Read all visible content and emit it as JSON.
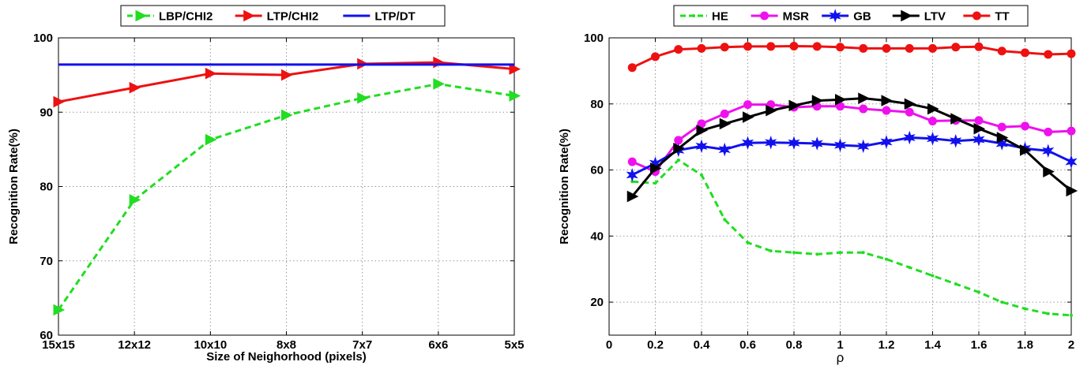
{
  "chart_data": [
    {
      "type": "line",
      "xlabel": "Size of Neighorhood (pixels)",
      "ylabel": "Recognition Rate(%)",
      "categories": [
        "15x15",
        "12x12",
        "10x10",
        "8x8",
        "7x7",
        "6x6",
        "5x5"
      ],
      "ylim": [
        60,
        100
      ],
      "yticks": [
        60,
        70,
        80,
        90,
        100
      ],
      "grid": true,
      "legend_position": "top",
      "series": [
        {
          "name": "LBP/CHI2",
          "color": "#22dd22",
          "dash": "dashed",
          "marker": "triangle-right",
          "values": [
            63.4,
            78.2,
            86.3,
            89.6,
            91.9,
            93.8,
            92.2
          ]
        },
        {
          "name": "LTP/CHI2",
          "color": "#ee1111",
          "dash": "solid",
          "marker": "triangle-right",
          "values": [
            91.4,
            93.3,
            95.2,
            95.0,
            96.5,
            96.7,
            95.8
          ]
        },
        {
          "name": "LTP/DT",
          "color": "#1111ee",
          "dash": "solid",
          "marker": "none",
          "values": [
            96.4,
            96.4,
            96.4,
            96.4,
            96.4,
            96.4,
            96.4
          ]
        }
      ]
    },
    {
      "type": "line",
      "xlabel": "ρ",
      "ylabel": "Recognition Rate(%)",
      "x": [
        0.1,
        0.2,
        0.3,
        0.4,
        0.5,
        0.6,
        0.7,
        0.8,
        0.9,
        1.0,
        1.1,
        1.2,
        1.3,
        1.4,
        1.5,
        1.6,
        1.7,
        1.8,
        1.9,
        2.0
      ],
      "xlim": [
        0,
        2
      ],
      "xticks": [
        0,
        0.2,
        0.4,
        0.6,
        0.8,
        1,
        1.2,
        1.4,
        1.6,
        1.8,
        2
      ],
      "ylim": [
        10,
        100
      ],
      "yticks": [
        20,
        40,
        60,
        80,
        100
      ],
      "grid": true,
      "legend_position": "top",
      "series": [
        {
          "name": "HE",
          "color": "#22dd22",
          "dash": "dashed",
          "marker": "dot",
          "values": [
            56.5,
            56.0,
            63.0,
            58.5,
            45.0,
            38.0,
            35.5,
            35.0,
            34.5,
            35.0,
            35.0,
            33.0,
            30.5,
            28.0,
            25.5,
            23.0,
            20.0,
            18.0,
            16.5,
            16.0
          ]
        },
        {
          "name": "MSR",
          "color": "#ee11ee",
          "dash": "solid",
          "marker": "circle",
          "values": [
            62.5,
            59.5,
            69.0,
            74.0,
            77.0,
            79.8,
            79.8,
            79.0,
            79.3,
            79.3,
            78.5,
            78.0,
            77.5,
            74.8,
            75.0,
            75.0,
            73.0,
            73.3,
            71.5,
            71.8
          ]
        },
        {
          "name": "GB",
          "color": "#1111ee",
          "dash": "solid",
          "marker": "star",
          "values": [
            58.5,
            62.0,
            66.0,
            67.2,
            66.2,
            68.2,
            68.3,
            68.2,
            68.0,
            67.5,
            67.2,
            68.5,
            69.8,
            69.5,
            68.8,
            69.2,
            68.0,
            66.5,
            65.8,
            62.5
          ]
        },
        {
          "name": "LTV",
          "color": "#000000",
          "dash": "solid",
          "marker": "triangle-right",
          "values": [
            52.0,
            60.5,
            66.5,
            72.0,
            74.0,
            76.0,
            78.0,
            79.5,
            81.0,
            81.3,
            81.7,
            81.0,
            80.0,
            78.5,
            75.5,
            72.5,
            69.8,
            66.0,
            59.5,
            53.7
          ]
        },
        {
          "name": "TT",
          "color": "#ee1111",
          "dash": "solid",
          "marker": "circle",
          "values": [
            91.0,
            94.3,
            96.5,
            96.8,
            97.2,
            97.4,
            97.4,
            97.5,
            97.4,
            97.2,
            96.8,
            96.8,
            96.8,
            96.8,
            97.2,
            97.3,
            96.0,
            95.5,
            95.0,
            95.2
          ]
        }
      ]
    }
  ]
}
